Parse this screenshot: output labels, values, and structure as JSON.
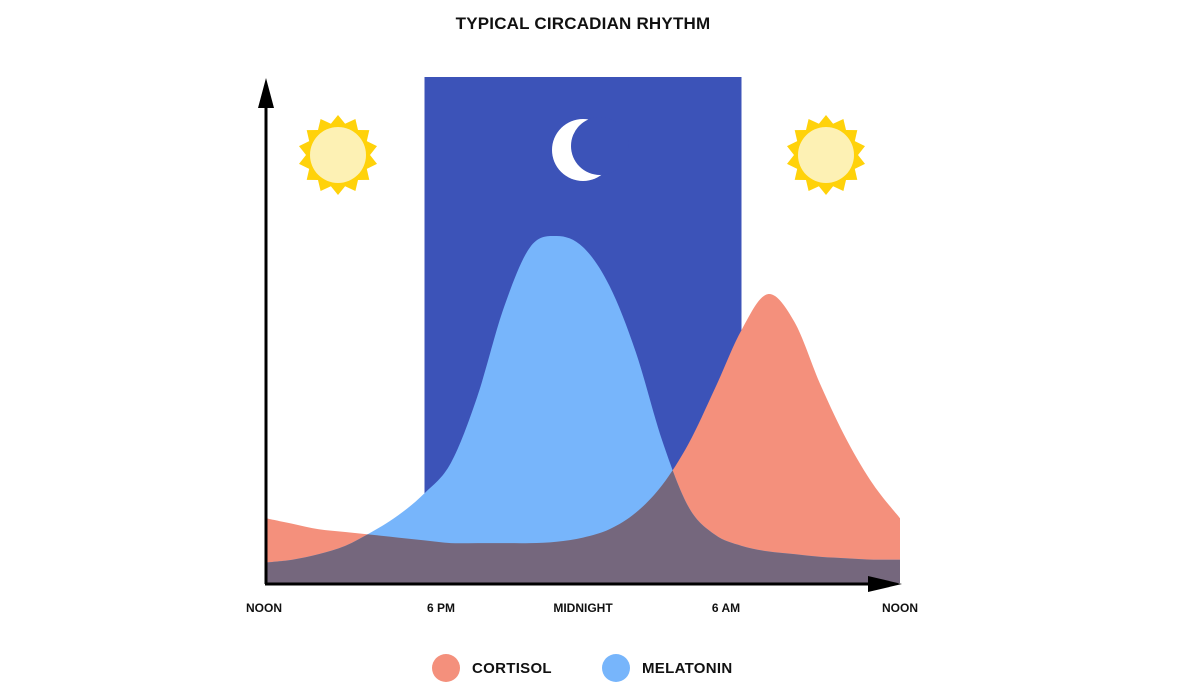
{
  "chart_data": {
    "type": "area",
    "title": "TYPICAL  CIRCADIAN RHYTHM",
    "x_ticks": [
      "NOON",
      "6 PM",
      "MIDNIGHT",
      "6 AM",
      "NOON"
    ],
    "x_range_hours": [
      0,
      24
    ],
    "night_band_hours": [
      6,
      18
    ],
    "y_axis_labeled": false,
    "grid": false,
    "legend_position": "bottom-center",
    "series": [
      {
        "name": "CORTISOL",
        "color": "#F4907C",
        "x_hours": [
          0,
          1,
          2,
          3,
          4,
          5,
          6,
          7,
          8,
          9,
          10,
          11,
          12,
          13,
          14,
          15,
          16,
          17,
          18,
          19,
          20,
          21,
          22,
          23,
          24
        ],
        "values": [
          0.18,
          0.16,
          0.14,
          0.13,
          0.12,
          0.11,
          0.1,
          0.09,
          0.09,
          0.09,
          0.09,
          0.095,
          0.11,
          0.14,
          0.2,
          0.3,
          0.45,
          0.65,
          0.86,
          0.99,
          0.89,
          0.66,
          0.46,
          0.3,
          0.18
        ]
      },
      {
        "name": "MELATONIN",
        "color": "#77B5FB",
        "x_hours": [
          0,
          1,
          2,
          3,
          4,
          5,
          6,
          7,
          8,
          9,
          10,
          11,
          12,
          13,
          14,
          15,
          16,
          17,
          18,
          19,
          20,
          21,
          22,
          23,
          24
        ],
        "values": [
          0.02,
          0.03,
          0.05,
          0.08,
          0.13,
          0.19,
          0.27,
          0.38,
          0.62,
          0.94,
          1.16,
          1.2,
          1.16,
          1.02,
          0.78,
          0.46,
          0.22,
          0.12,
          0.08,
          0.06,
          0.05,
          0.04,
          0.035,
          0.03,
          0.03
        ]
      }
    ],
    "overlap_color": "#75677D",
    "night_color": "#3C53B8",
    "sun_color": "#FFD20A",
    "sun_core_color": "#FDF1B4",
    "moon_color": "#FFFFFF",
    "icons": [
      "sun-icon",
      "moon-icon",
      "sun-icon"
    ]
  }
}
